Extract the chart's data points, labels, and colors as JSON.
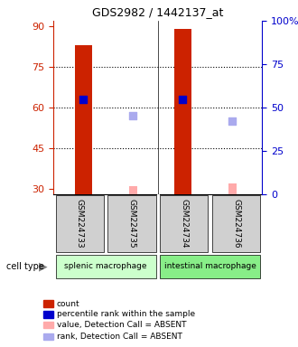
{
  "title": "GDS2982 / 1442137_at",
  "samples": [
    "GSM224733",
    "GSM224735",
    "GSM224734",
    "GSM224736"
  ],
  "cell_type_labels": [
    "splenic macrophage",
    "intestinal macrophage"
  ],
  "bar_values": [
    83,
    0,
    89,
    0
  ],
  "bar_color": "#cc2200",
  "absent_bar_values": [
    0,
    31,
    0,
    32
  ],
  "absent_bar_color": "#ffaaaa",
  "rank_values": [
    63,
    0,
    63,
    0
  ],
  "rank_color": "#0000cc",
  "absent_rank_values": [
    0,
    57,
    0,
    55
  ],
  "absent_rank_color": "#aaaaee",
  "ylim_left": [
    28,
    92
  ],
  "ylim_right": [
    0,
    100
  ],
  "yticks_left": [
    30,
    45,
    60,
    75,
    90
  ],
  "yticks_right": [
    0,
    25,
    50,
    75,
    100
  ],
  "ytick_labels_right": [
    "0",
    "25",
    "50",
    "75",
    "100%"
  ],
  "left_tick_color": "#cc2200",
  "right_tick_color": "#0000cc",
  "grid_yticks": [
    45,
    60,
    75
  ],
  "bar_width": 0.35,
  "splenic_color": "#ccffcc",
  "intestinal_color": "#88ee88",
  "gray_color": "#d0d0d0",
  "legend_items": [
    {
      "color": "#cc2200",
      "label": "count"
    },
    {
      "color": "#0000cc",
      "label": "percentile rank within the sample"
    },
    {
      "color": "#ffaaaa",
      "label": "value, Detection Call = ABSENT"
    },
    {
      "color": "#aaaaee",
      "label": "rank, Detection Call = ABSENT"
    }
  ]
}
